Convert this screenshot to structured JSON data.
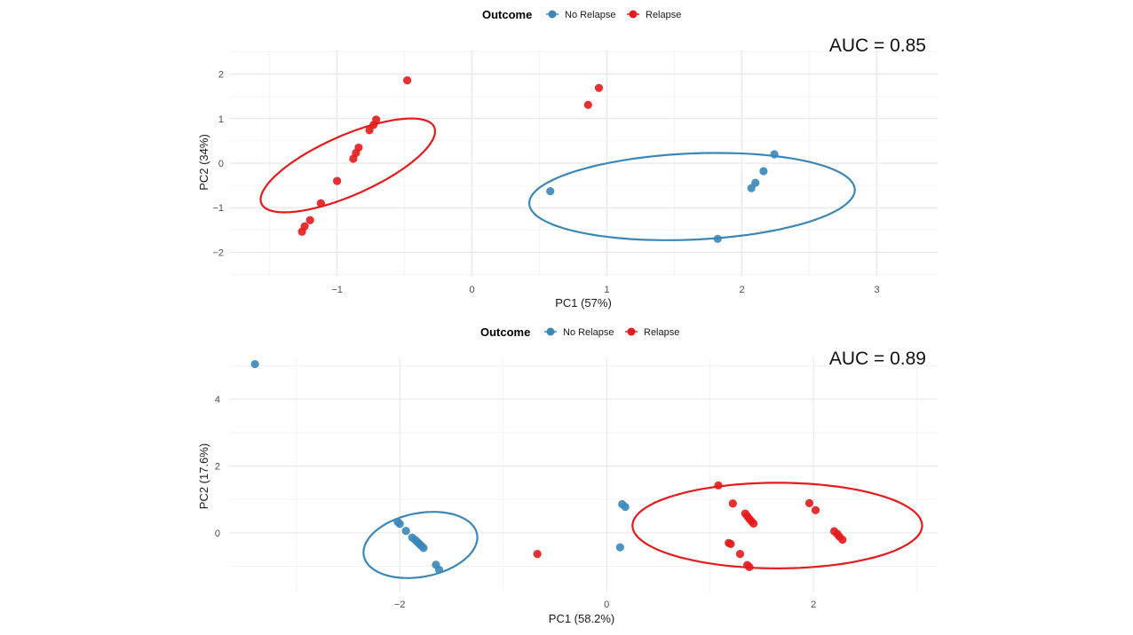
{
  "chart_data": [
    {
      "type": "scatter",
      "legend": {
        "title": "Outcome",
        "position": "top",
        "entries": [
          "No Relapse",
          "Relapse"
        ]
      },
      "annotation": "AUC = 0.85",
      "xlabel": "PC1 (57%)",
      "ylabel": "PC2 (34%)",
      "xlim": [
        -1.8,
        3.45
      ],
      "ylim": [
        -2.55,
        2.55
      ],
      "x_ticks": [
        -1,
        0,
        1,
        2,
        3
      ],
      "x_tick_labels": [
        "−1",
        "0",
        "1",
        "2",
        "3"
      ],
      "y_ticks": [
        -2,
        -1,
        0,
        1,
        2
      ],
      "y_tick_labels": [
        "−2",
        "−1",
        "0",
        "1",
        "2"
      ],
      "grid": true,
      "colors": {
        "No Relapse": "#3a87b8",
        "Relapse": "#e41a1c"
      },
      "series": [
        {
          "name": "No Relapse",
          "points": [
            [
              0.58,
              -0.63
            ],
            [
              1.82,
              -1.7
            ],
            [
              2.07,
              -0.56
            ],
            [
              2.1,
              -0.44
            ],
            [
              2.16,
              -0.18
            ],
            [
              2.24,
              0.2
            ]
          ],
          "ellipse": {
            "cx": 1.63,
            "cy": -0.75,
            "rx": 1.23,
            "ry": 0.95,
            "angle_deg": 18
          }
        },
        {
          "name": "Relapse",
          "points": [
            [
              -1.26,
              -1.54
            ],
            [
              -1.24,
              -1.42
            ],
            [
              -1.2,
              -1.28
            ],
            [
              -1.12,
              -0.9
            ],
            [
              -1.0,
              -0.4
            ],
            [
              -0.88,
              0.1
            ],
            [
              -0.86,
              0.23
            ],
            [
              -0.84,
              0.35
            ],
            [
              -0.76,
              0.74
            ],
            [
              -0.73,
              0.86
            ],
            [
              -0.71,
              0.98
            ],
            [
              -0.48,
              1.86
            ],
            [
              0.86,
              1.31
            ],
            [
              0.94,
              1.69
            ]
          ],
          "ellipse": {
            "cx": -0.92,
            "cy": -0.05,
            "rx": 1.17,
            "ry": 0.4,
            "angle_deg": 62.5
          }
        }
      ]
    },
    {
      "type": "scatter",
      "legend": {
        "title": "Outcome",
        "position": "top",
        "entries": [
          "No Relapse",
          "Relapse"
        ]
      },
      "annotation": "AUC = 0.89",
      "xlabel": "PC1 (58.2%)",
      "ylabel": "PC2 (17.6%)",
      "xlim": [
        -3.65,
        3.2
      ],
      "ylim": [
        -1.78,
        5.25
      ],
      "x_ticks": [
        -2,
        0,
        2
      ],
      "x_tick_labels": [
        "−2",
        "0",
        "2"
      ],
      "y_ticks": [
        0,
        2,
        4
      ],
      "y_tick_labels": [
        "0",
        "2",
        "4"
      ],
      "grid": true,
      "colors": {
        "No Relapse": "#3a87b8",
        "Relapse": "#e41a1c"
      },
      "series": [
        {
          "name": "No Relapse",
          "points": [
            [
              -3.4,
              5.05
            ],
            [
              -2.02,
              0.33
            ],
            [
              -2.0,
              0.27
            ],
            [
              -1.94,
              0.06
            ],
            [
              -1.88,
              -0.14
            ],
            [
              -1.85,
              -0.21
            ],
            [
              -1.83,
              -0.27
            ],
            [
              -1.81,
              -0.33
            ],
            [
              -1.79,
              -0.39
            ],
            [
              -1.77,
              -0.45
            ],
            [
              -1.65,
              -0.95
            ],
            [
              -1.62,
              -1.1
            ],
            [
              0.13,
              -0.43
            ],
            [
              0.15,
              0.86
            ],
            [
              0.18,
              0.78
            ]
          ],
          "ellipse": {
            "cx": -1.8,
            "cy": -0.36,
            "rx": 0.53,
            "ry": 1.0,
            "angle_deg": -10
          }
        },
        {
          "name": "Relapse",
          "points": [
            [
              -0.67,
              -0.63
            ],
            [
              1.08,
              1.42
            ],
            [
              1.22,
              0.88
            ],
            [
              1.18,
              -0.3
            ],
            [
              1.2,
              -0.33
            ],
            [
              1.29,
              -0.63
            ],
            [
              1.34,
              0.58
            ],
            [
              1.36,
              0.5
            ],
            [
              1.38,
              0.42
            ],
            [
              1.4,
              0.35
            ],
            [
              1.42,
              0.28
            ],
            [
              1.36,
              -0.96
            ],
            [
              1.38,
              -1.02
            ],
            [
              1.96,
              0.89
            ],
            [
              2.02,
              0.68
            ],
            [
              2.2,
              0.05
            ],
            [
              2.23,
              -0.03
            ],
            [
              2.25,
              -0.11
            ],
            [
              2.28,
              -0.2
            ]
          ],
          "ellipse": {
            "cx": 1.65,
            "cy": 0.22,
            "rx": 1.4,
            "ry": 1.28,
            "angle_deg": 0
          }
        }
      ]
    }
  ]
}
